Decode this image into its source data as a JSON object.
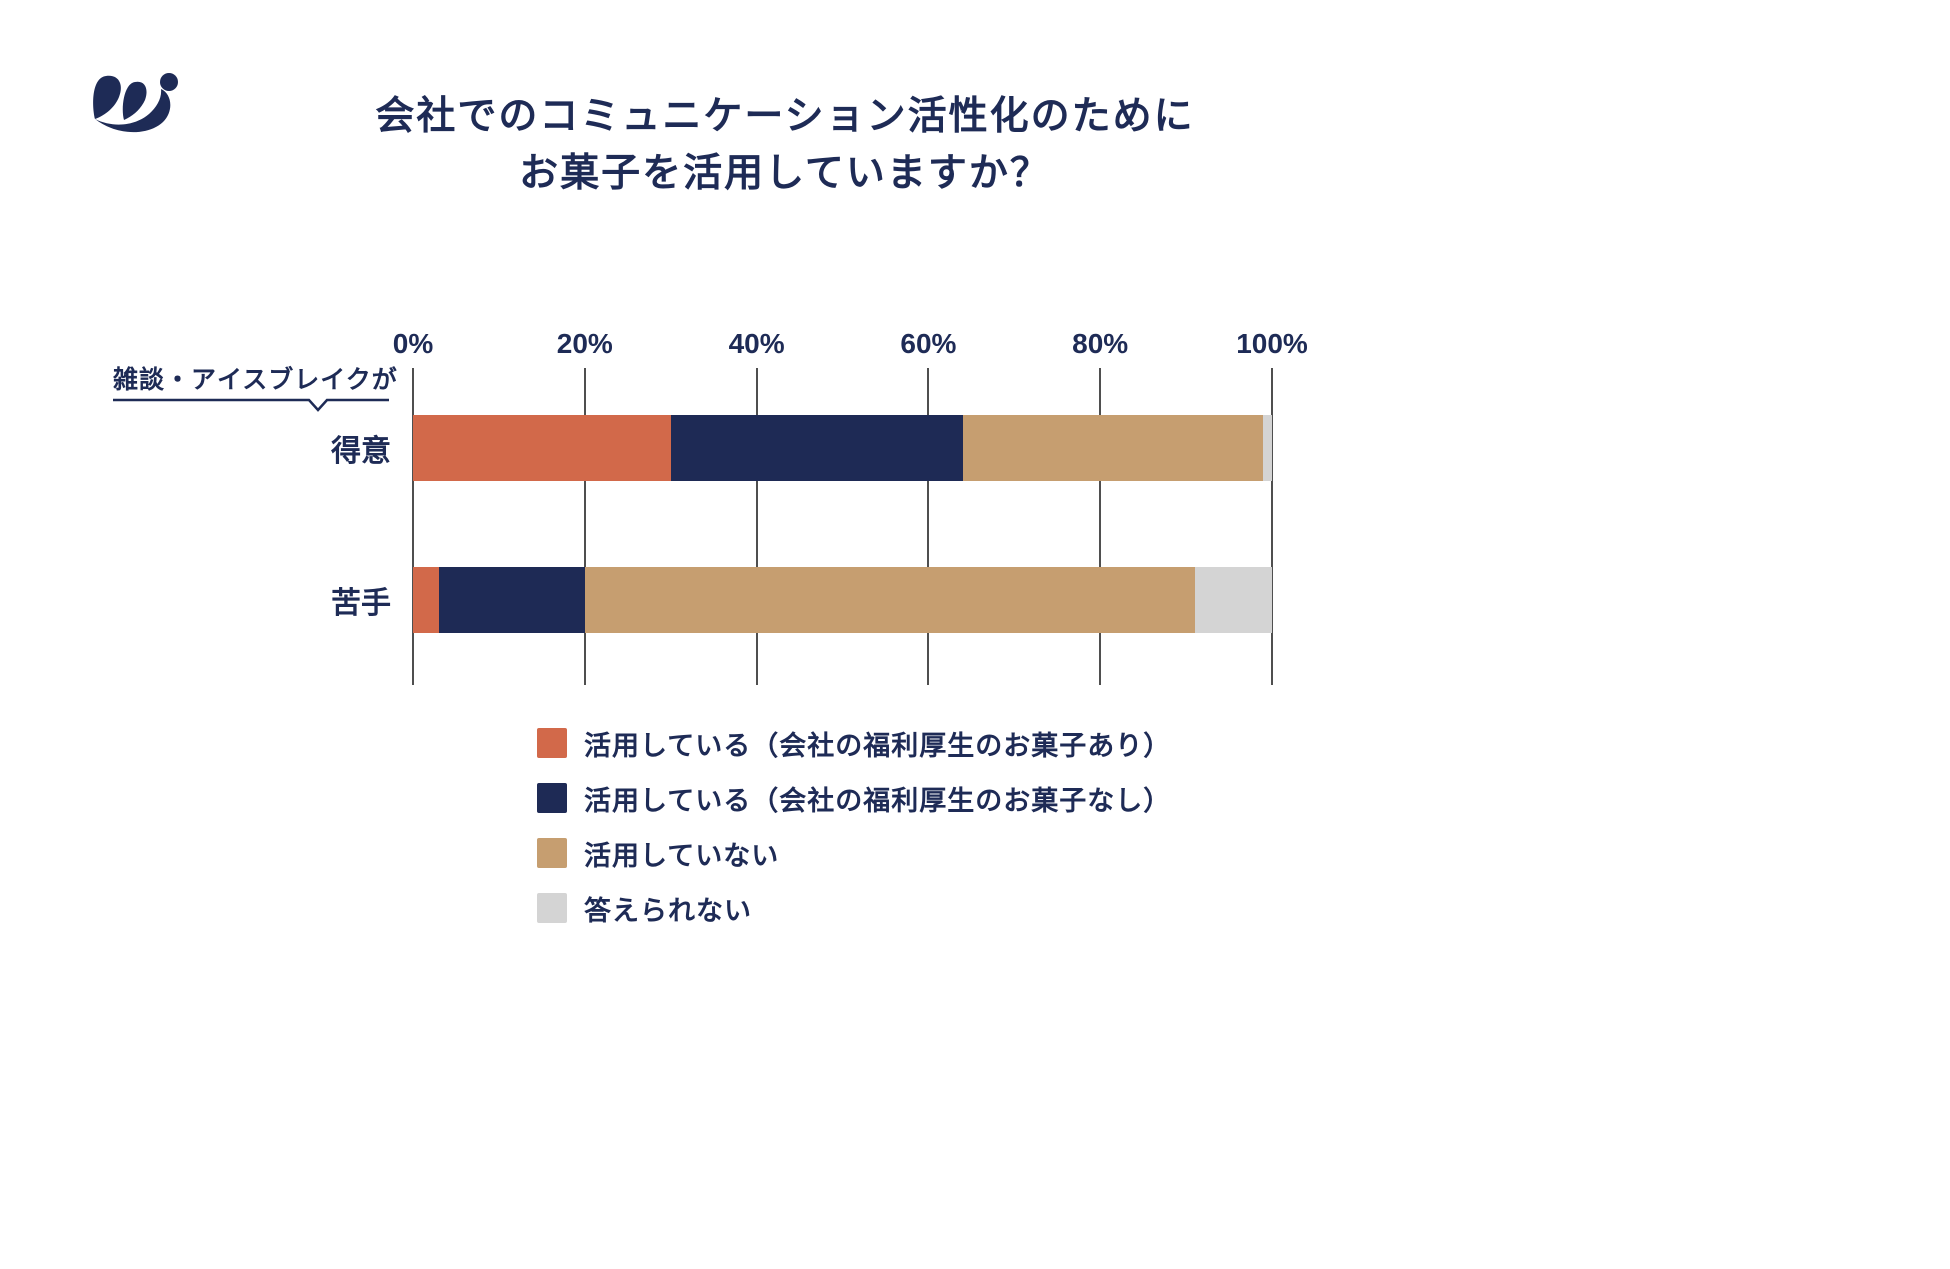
{
  "page": {
    "background": "#ffffff",
    "text_color": "#1e2b56"
  },
  "title": {
    "line1": "会社でのコミュニケーション活性化のために",
    "line2": "お菓子を活用していますか？"
  },
  "axis_annotation": "雑談・アイスブレイクが",
  "chart_data": {
    "type": "bar",
    "orientation": "horizontal",
    "stacked": true,
    "unit": "%",
    "xlim": [
      0,
      100
    ],
    "grid": true,
    "legend_position": "bottom",
    "x_ticks": [
      {
        "value": 0,
        "label": "0%"
      },
      {
        "value": 20,
        "label": "20%"
      },
      {
        "value": 40,
        "label": "40%"
      },
      {
        "value": 60,
        "label": "60%"
      },
      {
        "value": 80,
        "label": "80%"
      },
      {
        "value": 100,
        "label": "100%"
      }
    ],
    "categories": [
      "得意",
      "苦手"
    ],
    "series": [
      {
        "name": "活用している（会社の福利厚生のお菓子あり）",
        "color": "#d2694a",
        "values": [
          30,
          3
        ]
      },
      {
        "name": "活用している（会社の福利厚生のお菓子なし）",
        "color": "#1e2a55",
        "values": [
          34,
          17
        ]
      },
      {
        "name": "活用していない",
        "color": "#c69e70",
        "values": [
          35,
          71
        ]
      },
      {
        "name": "答えられない",
        "color": "#d4d4d4",
        "values": [
          1,
          9
        ]
      }
    ]
  }
}
